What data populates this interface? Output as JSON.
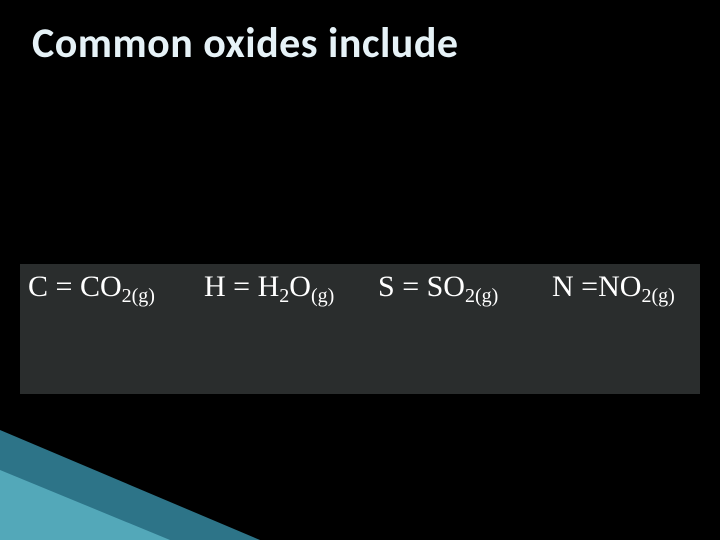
{
  "slide": {
    "title": "Common oxides include",
    "background_color": "#000000",
    "title_color": "#e6f2f7",
    "title_fontsize_pt": 32,
    "title_fontweight": 700,
    "formula_box": {
      "background_color": "#2a2d2d",
      "text_color": "#ffffff",
      "font_family": "Times New Roman",
      "base_fontsize_pt": 22,
      "sub_fontsize_pt": 15,
      "cells": [
        {
          "element": "C",
          "eq": " = ",
          "formula_main": "CO",
          "formula_sub": "2(g)"
        },
        {
          "element": "H",
          "eq": " = ",
          "formula_main": "H",
          "formula_mid_sub": "2",
          "formula_tail": "O",
          "formula_sub": "(g)"
        },
        {
          "element": "S",
          "eq": " = ",
          "formula_main": "SO",
          "formula_sub": "2(g)"
        },
        {
          "element": "N",
          "eq": " =",
          "formula_main": "NO",
          "formula_sub": "2(g)"
        }
      ]
    },
    "accent": {
      "dark_color": "#2f7a8f",
      "light_color": "#58aebf"
    }
  }
}
